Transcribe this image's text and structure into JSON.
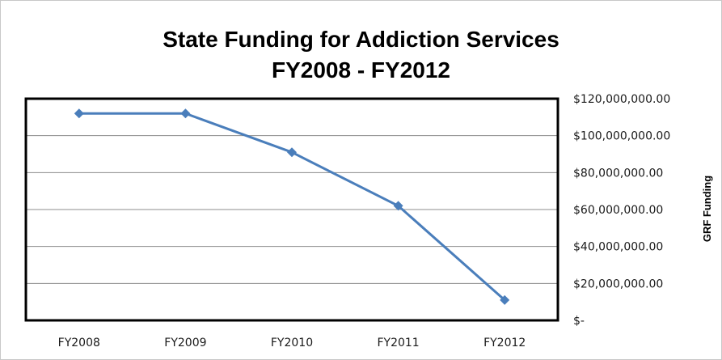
{
  "chart_data": {
    "type": "line",
    "title": "State Funding for Addiction Services",
    "subtitle": "FY2008 - FY2012",
    "ylabel": "GRF Funding",
    "xlabel": "",
    "y_axis_side": "right",
    "ylim": [
      0,
      120000000
    ],
    "ytick_values": [
      0,
      20000000,
      40000000,
      60000000,
      80000000,
      100000000,
      120000000
    ],
    "ytick_labels": [
      "$-",
      "$20,000,000.00",
      "$40,000,000.00",
      "$60,000,000.00",
      "$80,000,000.00",
      "$100,000,000.00",
      "$120,000,000.00"
    ],
    "grid": true,
    "legend": "none",
    "categories": [
      "FY2008",
      "FY2009",
      "FY2010",
      "FY2011",
      "FY2012"
    ],
    "series": [
      {
        "values": [
          112000000,
          112000000,
          91000000,
          62000000,
          11000000
        ],
        "color": "#4a7ebb",
        "marker": "diamond"
      }
    ]
  }
}
